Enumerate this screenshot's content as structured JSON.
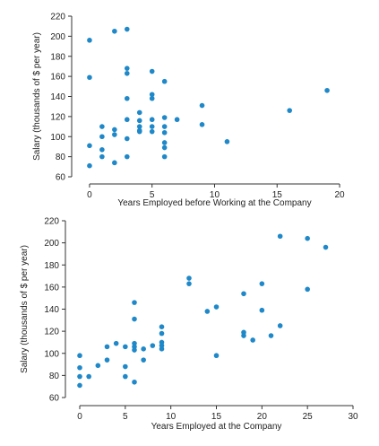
{
  "chart_data": [
    {
      "type": "scatter",
      "xlabel": "Years Employed before Working at the Company",
      "ylabel": "Salary (thousands of $ per year)",
      "color": "#1f88c8",
      "x": [
        0,
        0,
        0,
        0,
        1,
        1,
        1,
        1,
        2,
        2,
        2,
        2,
        3,
        3,
        3,
        3,
        3,
        3,
        3,
        4,
        4,
        4,
        4,
        4,
        5,
        5,
        5,
        5,
        5,
        5,
        6,
        6,
        6,
        6,
        6,
        6,
        6,
        7,
        9,
        9,
        11,
        16,
        19
      ],
      "y": [
        196,
        159,
        91,
        71,
        110,
        100,
        87,
        80,
        205,
        107,
        102,
        74,
        207,
        168,
        163,
        138,
        117,
        98,
        80,
        124,
        116,
        110,
        106,
        105,
        165,
        142,
        138,
        117,
        110,
        105,
        155,
        119,
        110,
        104,
        94,
        89,
        80,
        117,
        131,
        112,
        95,
        126,
        146
      ],
      "xlim": [
        -1.5,
        20.5
      ],
      "ylim": [
        60,
        220
      ],
      "xticks": [
        0,
        5,
        10,
        15,
        20
      ],
      "yticks": [
        60,
        80,
        100,
        120,
        140,
        160,
        180,
        200,
        220
      ]
    },
    {
      "type": "scatter",
      "xlabel": "Years Employed at the Company",
      "ylabel": "Salary (thousands of $ per year)",
      "color": "#1f88c8",
      "x": [
        0,
        0,
        0,
        0,
        1,
        2,
        3,
        3,
        4,
        5,
        5,
        5,
        6,
        6,
        6,
        6,
        6,
        6,
        7,
        7,
        8,
        9,
        9,
        9,
        9,
        9,
        12,
        12,
        14,
        15,
        15,
        18,
        18,
        18,
        19,
        20,
        20,
        21,
        22,
        22,
        25,
        25,
        27
      ],
      "y": [
        98,
        87,
        79,
        71,
        79,
        89,
        106,
        94,
        109,
        106,
        88,
        79,
        146,
        131,
        109,
        106,
        103,
        74,
        104,
        94,
        107,
        124,
        118,
        110,
        107,
        104,
        168,
        163,
        138,
        142,
        98,
        154,
        119,
        116,
        112,
        163,
        139,
        116,
        206,
        125,
        204,
        158,
        196
      ],
      "xlim": [
        -1.5,
        30.5
      ],
      "ylim": [
        60,
        220
      ],
      "xticks": [
        0,
        5,
        10,
        15,
        20,
        25,
        30
      ],
      "yticks": [
        60,
        80,
        100,
        120,
        140,
        160,
        180,
        200,
        220
      ]
    }
  ]
}
